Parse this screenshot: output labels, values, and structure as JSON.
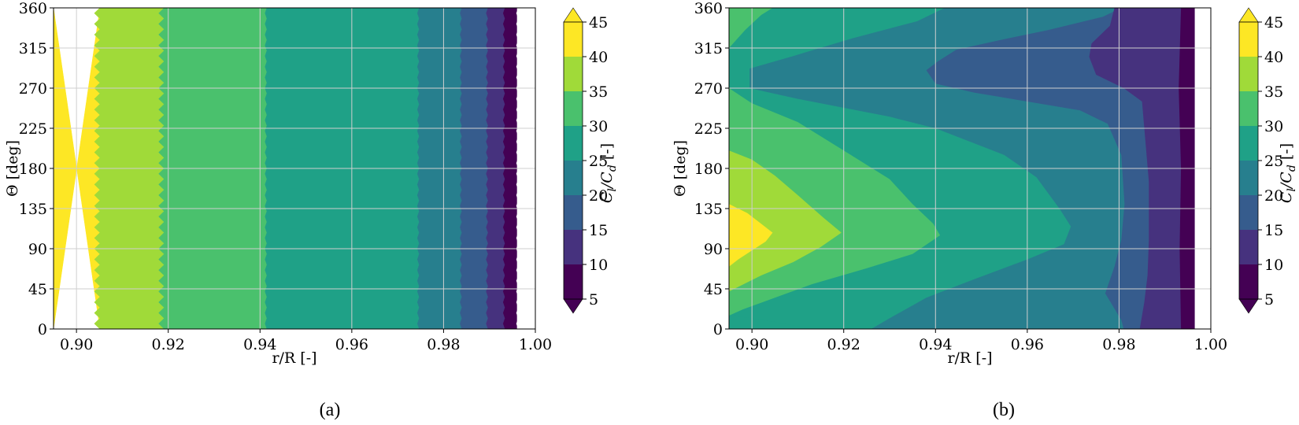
{
  "colors": {
    "levels": [
      "#440154",
      "#46327e",
      "#365c8d",
      "#277f8e",
      "#1fa187",
      "#4ac16d",
      "#a0da39",
      "#fde725"
    ],
    "grid": "#cfcfcf"
  },
  "chart_data": [
    {
      "type": "contourf",
      "panel_label": "(a)",
      "xlabel": "r/R [-]",
      "ylabel": "Θ [deg]",
      "xlim": [
        0.895,
        1.0
      ],
      "ylim": [
        0,
        360
      ],
      "xticks": [
        "0.90",
        "0.92",
        "0.94",
        "0.96",
        "0.98",
        "1.00"
      ],
      "yticks": [
        "0",
        "45",
        "90",
        "135",
        "180",
        "225",
        "270",
        "315",
        "360"
      ],
      "colorbar": {
        "label": "C_l/C_d [-]",
        "label_parts": [
          "C",
          "l",
          "/C",
          "d",
          " [-]"
        ],
        "ticks": [
          "5",
          "10",
          "15",
          "20",
          "25",
          "30",
          "35",
          "40",
          "45"
        ],
        "extend": "both"
      },
      "grid": true,
      "level_bounds": [
        5,
        10,
        15,
        20,
        25,
        30,
        35,
        40,
        45
      ],
      "contour_boundaries_r_over_R": [
        {
          "level": "40-45 / 35-40",
          "r": 0.9045
        },
        {
          "level": "35-40 / 30-35",
          "r": 0.9185
        },
        {
          "level": "30-35 / 25-30",
          "r": 0.9413
        },
        {
          "level": "25-30 / 20-25",
          "r": 0.9745
        },
        {
          "level": "20-25 / 15-20",
          "r": 0.9838
        },
        {
          "level": "15-20 / 10-15",
          "r": 0.9895
        },
        {
          "level": "10-15 / 5-10",
          "r": 0.9932
        },
        {
          "level": "5-10 / edge",
          "r": 0.996
        }
      ]
    },
    {
      "type": "contourf",
      "panel_label": "(b)",
      "xlabel": "r/R [-]",
      "ylabel": "Θ [deg]",
      "xlim": [
        0.895,
        1.0
      ],
      "ylim": [
        0,
        360
      ],
      "xticks": [
        "0.90",
        "0.92",
        "0.94",
        "0.96",
        "0.98",
        "1.00"
      ],
      "yticks": [
        "0",
        "45",
        "90",
        "135",
        "180",
        "225",
        "270",
        "315",
        "360"
      ],
      "colorbar": {
        "label": "C_l/C_d [-]",
        "label_parts": [
          "C",
          "l",
          "/C",
          "d",
          " [-]"
        ],
        "ticks": [
          "5",
          "10",
          "15",
          "20",
          "25",
          "30",
          "35",
          "40",
          "45"
        ],
        "extend": "both"
      },
      "grid": true,
      "level_bounds": [
        5,
        10,
        15,
        20,
        25,
        30,
        35,
        40,
        45
      ],
      "contour_boundaries": [
        {
          "level_index": 7,
          "points": [
            [
              0.895,
              140
            ],
            [
              0.899,
              130
            ],
            [
              0.902,
              118
            ],
            [
              0.9045,
              108
            ],
            [
              0.903,
              98
            ],
            [
              0.9,
              88
            ],
            [
              0.897,
              78
            ],
            [
              0.895,
              70
            ]
          ]
        },
        {
          "level_index": 6,
          "points": [
            [
              0.895,
              200
            ],
            [
              0.9,
              190
            ],
            [
              0.905,
              172
            ],
            [
              0.91,
              150
            ],
            [
              0.9155,
              125
            ],
            [
              0.9195,
              108
            ],
            [
              0.915,
              92
            ],
            [
              0.909,
              75
            ],
            [
              0.902,
              60
            ],
            [
              0.895,
              42
            ]
          ]
        },
        {
          "level_index": 5,
          "points": [
            [
              0.895,
              315
            ],
            [
              0.8985,
              335
            ],
            [
              0.902,
              352
            ],
            [
              0.9045,
              360
            ],
            [
              0.895,
              360
            ],
            [
              0.895,
              270
            ],
            [
              0.9,
              253
            ],
            [
              0.91,
              232
            ],
            [
              0.92,
              200
            ],
            [
              0.93,
              168
            ],
            [
              0.935,
              140
            ],
            [
              0.9395,
              118
            ],
            [
              0.941,
              105
            ],
            [
              0.935,
              84
            ],
            [
              0.925,
              68
            ],
            [
              0.913,
              50
            ],
            [
              0.905,
              35
            ],
            [
              0.898,
              22
            ],
            [
              0.895,
              15
            ]
          ]
        },
        {
          "level_index": 4,
          "points": [
            [
              0.913,
              0
            ],
            [
              0.905,
              8
            ],
            [
              0.897,
              14
            ]
          ],
          "outer": [
            [
              0.942,
              360
            ],
            [
              0.936,
              345
            ],
            [
              0.922,
              326
            ],
            [
              0.909,
              306
            ],
            [
              0.8995,
              292
            ],
            [
              0.8995,
              270
            ],
            [
              0.91,
              258
            ],
            [
              0.93,
              238
            ],
            [
              0.94,
              225
            ],
            [
              0.955,
              195
            ],
            [
              0.962,
              170
            ],
            [
              0.967,
              135
            ],
            [
              0.9695,
              115
            ],
            [
              0.968,
              95
            ],
            [
              0.96,
              78
            ],
            [
              0.948,
              55
            ],
            [
              0.938,
              35
            ],
            [
              0.93,
              12
            ],
            [
              0.926,
              0
            ]
          ]
        },
        {
          "level_index": 3,
          "points": [
            [
              0.9805,
              360
            ],
            [
              0.9765,
              350
            ],
            [
              0.9645,
              335
            ],
            [
              0.955,
              325
            ],
            [
              0.9445,
              313
            ],
            [
              0.9405,
              300
            ],
            [
              0.938,
              290
            ],
            [
              0.94,
              275
            ],
            [
              0.9485,
              265
            ],
            [
              0.96,
              255
            ],
            [
              0.9715,
              245
            ],
            [
              0.9775,
              230
            ],
            [
              0.9805,
              195
            ],
            [
              0.9812,
              140
            ],
            [
              0.9805,
              100
            ],
            [
              0.979,
              70
            ],
            [
              0.977,
              40
            ],
            [
              0.9805,
              10
            ],
            [
              0.981,
              0
            ]
          ],
          "inner": [
            [
              0.979,
              360
            ],
            [
              0.978,
              340
            ],
            [
              0.974,
              320
            ],
            [
              0.9735,
              305
            ],
            [
              0.975,
              285
            ],
            [
              0.981,
              270
            ],
            [
              0.985,
              255
            ],
            [
              0.9855,
              225
            ],
            [
              0.9865,
              165
            ],
            [
              0.9865,
              100
            ],
            [
              0.9862,
              60
            ],
            [
              0.9855,
              30
            ],
            [
              0.9845,
              0
            ]
          ]
        }
      ]
    }
  ]
}
